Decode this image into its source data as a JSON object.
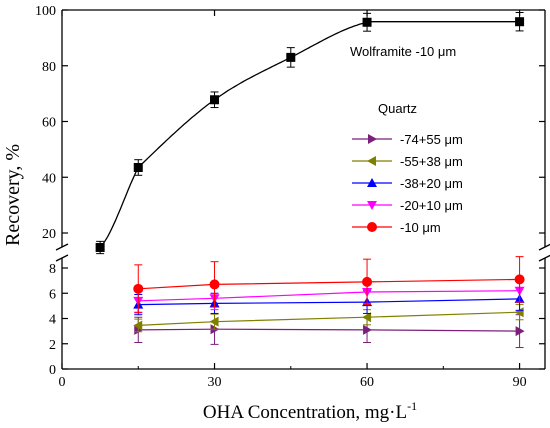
{
  "chart_data": {
    "type": "line",
    "xlabel": "OHA Concentration, mg·L",
    "xlabel_sup": "-1",
    "ylabel": "Recovery, %",
    "xlim": [
      0,
      95
    ],
    "x_ticks": [
      "0",
      "30",
      "60",
      "90"
    ],
    "y_upper_ticks": [
      "20",
      "40",
      "60",
      "80",
      "100"
    ],
    "y_lower_ticks": [
      "0",
      "2",
      "4",
      "6",
      "8"
    ],
    "y_break": [
      9,
      15
    ],
    "wolframite_label": "Wolframite  -10 μm",
    "quartz_title": "Quartz",
    "legend_placement": "center-right",
    "wolframite": {
      "name": "Wolframite -10 μm",
      "color": "#000000",
      "marker": "square",
      "x": [
        7.5,
        15,
        30,
        45,
        60,
        90
      ],
      "y": [
        14.8,
        43.5,
        67.8,
        83,
        95.6,
        95.8
      ],
      "err": [
        2.2,
        2.8,
        2.8,
        3.5,
        3.2,
        3.3
      ]
    },
    "series": [
      {
        "name": "-74+55 μm",
        "color": "#7B1F7B",
        "marker": "triangle-right",
        "x": [
          15,
          30,
          60,
          90
        ],
        "y": [
          3.1,
          3.15,
          3.1,
          3.0
        ],
        "err": [
          1.0,
          1.2,
          1.0,
          1.3
        ]
      },
      {
        "name": "-55+38 μm",
        "color": "#7F7F00",
        "marker": "triangle-left",
        "x": [
          15,
          30,
          60,
          90
        ],
        "y": [
          3.45,
          3.75,
          4.1,
          4.5
        ],
        "err": [
          0.5,
          0.6,
          0.6,
          0.6
        ]
      },
      {
        "name": "-38+20 μm",
        "color": "#0000FF",
        "marker": "triangle-up",
        "x": [
          15,
          30,
          60,
          90
        ],
        "y": [
          5.1,
          5.2,
          5.3,
          5.55
        ],
        "err": [
          0.8,
          0.8,
          0.9,
          0.9
        ]
      },
      {
        "name": "-20+10 μm",
        "color": "#FF00FF",
        "marker": "triangle-down",
        "x": [
          15,
          30,
          60,
          90
        ],
        "y": [
          5.4,
          5.6,
          6.1,
          6.2
        ],
        "err": [
          0.9,
          0.9,
          0.9,
          0.9
        ]
      },
      {
        "name": "-10 μm",
        "color": "#FF0000",
        "marker": "circle",
        "x": [
          15,
          30,
          60,
          90
        ],
        "y": [
          6.35,
          6.7,
          6.9,
          7.1
        ],
        "err": [
          1.9,
          1.8,
          1.8,
          1.8
        ]
      }
    ]
  }
}
